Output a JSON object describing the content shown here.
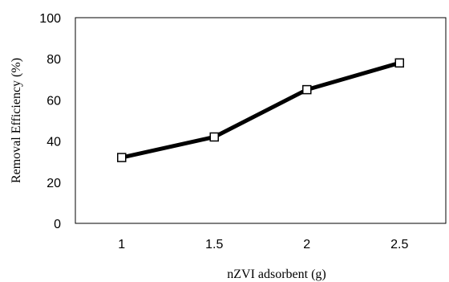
{
  "chart_data": {
    "type": "line",
    "title": "",
    "xlabel": "nZVI adsorbent (g)",
    "ylabel": "Removal Efficiency (%)",
    "categories": [
      "1",
      "1.5",
      "2",
      "2.5"
    ],
    "series": [
      {
        "values": [
          32,
          42,
          65,
          78
        ],
        "color": "#000000",
        "marker": "hollow-square"
      }
    ],
    "ylim": [
      0,
      100
    ],
    "yticks": [
      "0",
      "20",
      "40",
      "60",
      "80",
      "100"
    ],
    "grid": false,
    "legend": "none"
  }
}
